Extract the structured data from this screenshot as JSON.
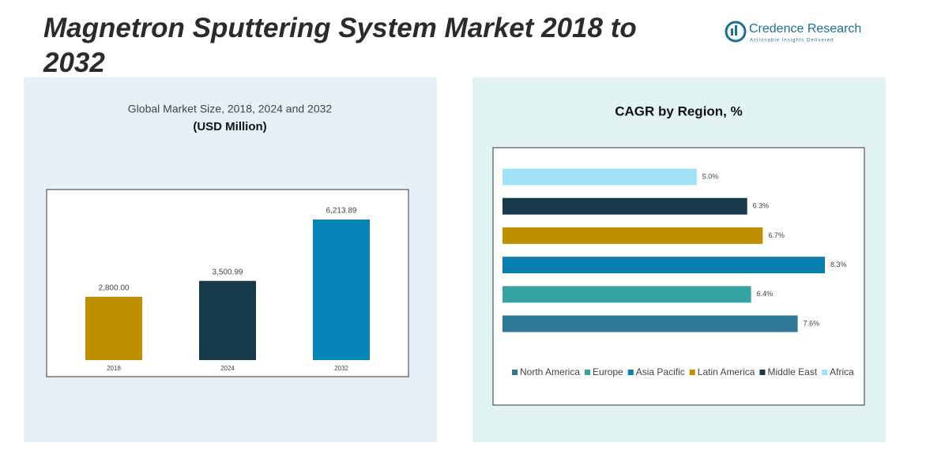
{
  "title": "Magnetron Sputtering System Market 2018 to 2032",
  "logo": {
    "name": "Credence Research",
    "tagline": "Actionable Insights Delivered"
  },
  "chart_data": [
    {
      "type": "bar",
      "title": "Global Market Size, 2018, 2024 and 2032",
      "subtitle": "(USD Million)",
      "categories": [
        "2018",
        "2024",
        "2032"
      ],
      "values": [
        2800,
        3500.99,
        6213.89
      ],
      "value_labels": [
        "2,800.00",
        "3,500.99",
        "6,213.89"
      ],
      "colors": [
        "#c08f00",
        "#173a4a",
        "#0484b6"
      ]
    },
    {
      "type": "hbar",
      "title": "CAGR by Region, %",
      "categories": [
        "North America",
        "Europe",
        "Asia Pacific",
        "Latin America",
        "Middle East",
        "Africa"
      ],
      "values": [
        7.6,
        6.4,
        8.3,
        6.7,
        6.3,
        5.0
      ],
      "value_labels": [
        "7.6%",
        "6.4%",
        "8.3%",
        "6.7%",
        "6.3%",
        "5.0%"
      ],
      "colors": [
        "#2f7897",
        "#35a39f",
        "#0a80b2",
        "#c08f00",
        "#173a4a",
        "#a0e2f7"
      ],
      "legend": "bottom"
    }
  ]
}
